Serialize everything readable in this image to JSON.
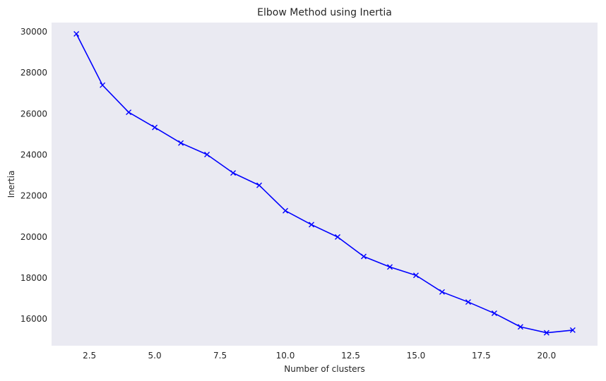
{
  "chart_data": {
    "type": "line",
    "title": "Elbow Method using Inertia",
    "xlabel": "Number of clusters",
    "ylabel": "Inertia",
    "xlim": [
      1.05,
      21.95
    ],
    "ylim": [
      14700,
      30450
    ],
    "xticks": [
      2.5,
      5.0,
      7.5,
      10.0,
      12.5,
      15.0,
      17.5,
      20.0
    ],
    "xtick_labels": [
      "2.5",
      "5.0",
      "7.5",
      "10.0",
      "12.5",
      "15.0",
      "17.5",
      "20.0"
    ],
    "yticks": [
      16000,
      18000,
      20000,
      22000,
      24000,
      26000,
      28000,
      30000
    ],
    "ytick_labels": [
      "16000",
      "18000",
      "20000",
      "22000",
      "24000",
      "26000",
      "28000",
      "30000"
    ],
    "grid": false,
    "series": [
      {
        "color": "#0000ff",
        "marker": "x",
        "x": [
          2,
          3,
          4,
          5,
          6,
          7,
          8,
          9,
          10,
          11,
          12,
          13,
          14,
          15,
          16,
          17,
          18,
          19,
          20,
          21
        ],
        "values": [
          29900,
          27400,
          26080,
          25340,
          24580,
          24020,
          23120,
          22520,
          21280,
          20600,
          20000,
          19050,
          18540,
          18130,
          17320,
          16830,
          16280,
          15620,
          15330,
          15460
        ]
      }
    ],
    "colors": {
      "plot_background": "#eaeaf2",
      "text": "#262626"
    }
  }
}
